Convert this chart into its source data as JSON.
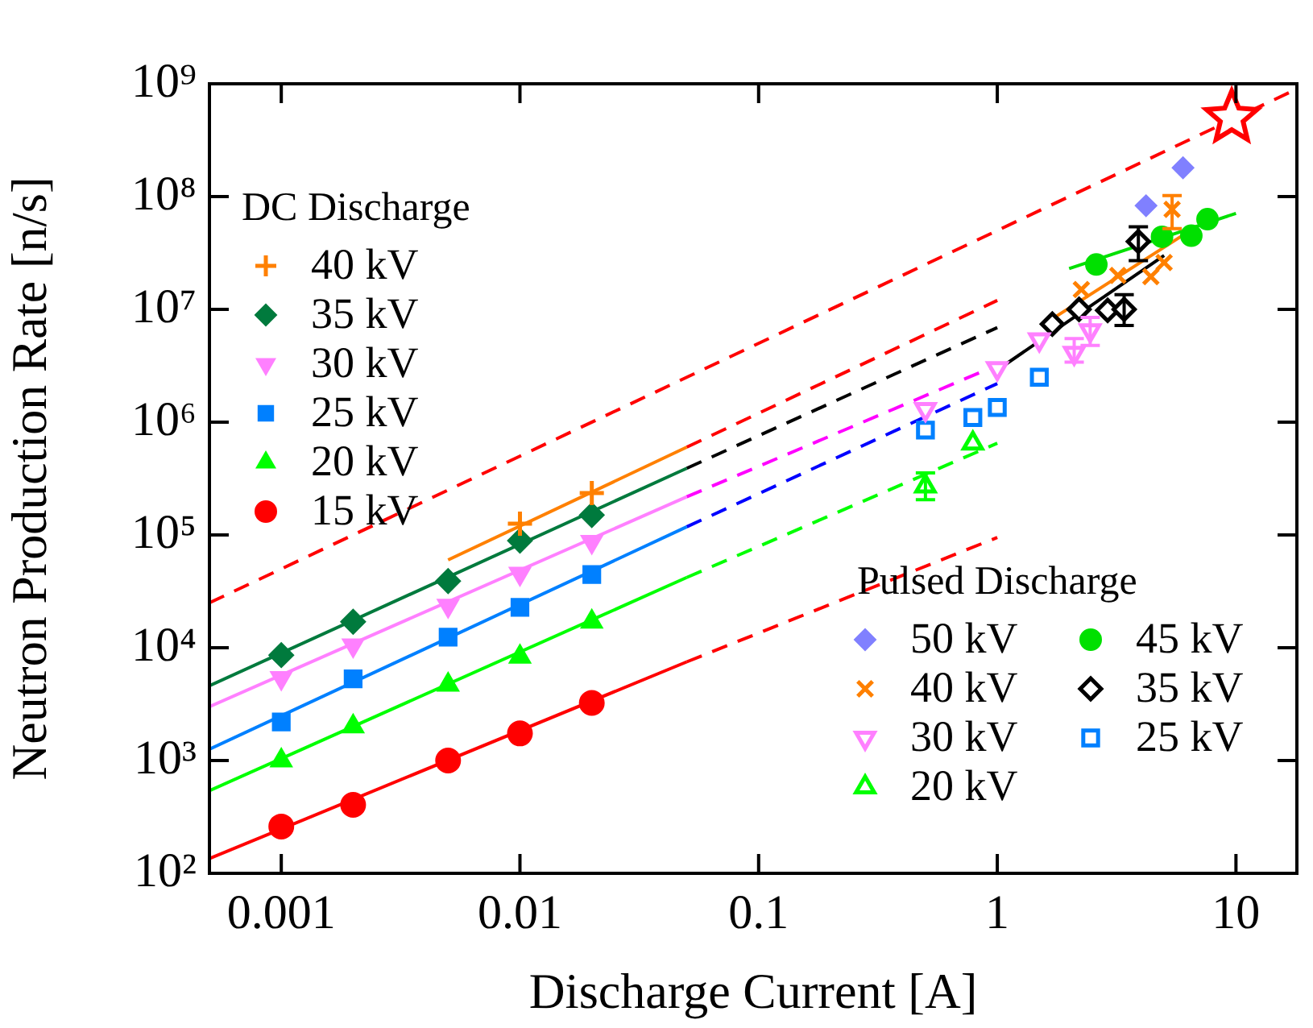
{
  "chart_data": {
    "type": "scatter",
    "xlabel": "Discharge Current [A]",
    "ylabel": "Neutron Production Rate [n/s]",
    "log": "xy",
    "grid": false,
    "legend": [
      "top left",
      "bottom right"
    ],
    "legend_title": [
      "DC Discharge",
      "Pulsed Discharge"
    ],
    "xlim": [
      0.0005,
      18
    ],
    "ylim": [
      100,
      1000000000
    ],
    "xticks": [
      0.001,
      0.01,
      0.1,
      1,
      10
    ],
    "yticks": [
      {
        "value": 100,
        "label": "10²"
      },
      {
        "value": 1000,
        "label": "10³"
      },
      {
        "value": 10000,
        "label": "10⁴"
      },
      {
        "value": 100000,
        "label": "10⁵"
      },
      {
        "value": 1000000,
        "label": "10⁶"
      },
      {
        "value": 10000000,
        "label": "10⁷"
      },
      {
        "value": 100000000,
        "label": "10⁸"
      },
      {
        "value": 1000000000,
        "label": "10⁹"
      }
    ],
    "series": [
      {
        "type": "line",
        "marker": "none",
        "line_style": "solid",
        "color": "#ff8000",
        "x": [
          0.005,
          0.05
        ],
        "values": [
          60000,
          600000
        ]
      },
      {
        "type": "line",
        "marker": "none",
        "line_style": "solid",
        "color": "#007a3d",
        "x": [
          0.0005,
          0.05
        ],
        "values": [
          4600,
          390000
        ]
      },
      {
        "type": "line",
        "marker": "none",
        "line_style": "solid",
        "color": "#ff80ff",
        "x": [
          0.0005,
          0.05
        ],
        "values": [
          3000,
          218000
        ]
      },
      {
        "type": "line",
        "marker": "none",
        "line_style": "solid",
        "color": "#0080ff",
        "x": [
          0.0005,
          0.05
        ],
        "values": [
          1260,
          118000
        ]
      },
      {
        "type": "line",
        "marker": "none",
        "line_style": "solid",
        "color": "#00ff00",
        "x": [
          0.0005,
          0.05
        ],
        "values": [
          540,
          42000
        ]
      },
      {
        "type": "line",
        "marker": "none",
        "line_style": "solid",
        "color": "#ff0000",
        "x": [
          0.0005,
          0.05
        ],
        "values": [
          135,
          7500
        ]
      },
      {
        "type": "line",
        "marker": "none",
        "line_style": "dashed",
        "color": "#ff0000",
        "x": [
          0.05,
          1
        ],
        "values": [
          600000,
          12000000
        ]
      },
      {
        "type": "line",
        "marker": "none",
        "line_style": "dashed",
        "color": "#000000",
        "x": [
          0.05,
          1
        ],
        "values": [
          390000,
          6900000
        ]
      },
      {
        "type": "line",
        "marker": "none",
        "line_style": "dashed",
        "color": "#ff00ff",
        "x": [
          0.05,
          1
        ],
        "values": [
          218000,
          3200000
        ]
      },
      {
        "type": "line",
        "marker": "none",
        "line_style": "dashed",
        "color": "#0000ff",
        "x": [
          0.05,
          1
        ],
        "values": [
          118000,
          2200000
        ]
      },
      {
        "type": "line",
        "marker": "none",
        "line_style": "dashed",
        "color": "#00ff00",
        "x": [
          0.05,
          1
        ],
        "values": [
          42000,
          650000
        ]
      },
      {
        "type": "line",
        "marker": "none",
        "line_style": "dashed",
        "color": "#ff0000",
        "x": [
          0.05,
          1
        ],
        "values": [
          7500,
          95000
        ]
      },
      {
        "type": "line",
        "marker": "none",
        "line_style": "dashed",
        "color": "#ff0000",
        "x": [
          0.0005,
          18
        ],
        "values": [
          25000,
          900000000
        ]
      },
      {
        "type": "line",
        "marker": "none",
        "line_style": "solid",
        "color": "#00e000",
        "x": [
          2.0,
          10
        ],
        "values": [
          23000000,
          71000000
        ]
      },
      {
        "type": "line",
        "marker": "none",
        "line_style": "solid",
        "color": "#ff8000",
        "x": [
          1.74,
          6.9
        ],
        "values": [
          8500000,
          55000000
        ]
      },
      {
        "type": "line",
        "marker": "none",
        "line_style": "solid",
        "color": "#000000",
        "x": [
          1.0,
          5.0
        ],
        "values": [
          2900000,
          30000000
        ]
      },
      {
        "name": "40 kV",
        "marker": "cross",
        "color": "#ff8000",
        "x": [
          0.01,
          0.02
        ],
        "values": [
          126000,
          235000
        ]
      },
      {
        "name": "35 kV",
        "marker": "diamond",
        "color": "#007a3d",
        "x": [
          0.001,
          0.002,
          0.005,
          0.01,
          0.02
        ],
        "values": [
          8600,
          17000,
          39000,
          89000,
          150000
        ]
      },
      {
        "name": "30 kV",
        "marker": "triangle-down",
        "color": "#ff80ff",
        "x": [
          0.001,
          0.002,
          0.005,
          0.01,
          0.02
        ],
        "values": [
          5400,
          10500,
          23600,
          45500,
          87000
        ]
      },
      {
        "name": "25 kV",
        "marker": "square",
        "color": "#0080ff",
        "x": [
          0.001,
          0.002,
          0.005,
          0.01,
          0.02
        ],
        "values": [
          2200,
          5300,
          12400,
          22800,
          44500
        ]
      },
      {
        "name": "20 kV",
        "marker": "triangle",
        "color": "#00ff00",
        "x": [
          0.001,
          0.002,
          0.005,
          0.01,
          0.02
        ],
        "values": [
          1000,
          2000,
          4700,
          8300,
          17000
        ]
      },
      {
        "name": "15 kV",
        "marker": "circle",
        "color": "#ff0000",
        "x": [
          0.001,
          0.002,
          0.005,
          0.01,
          0.02
        ],
        "values": [
          260,
          405,
          1000,
          1740,
          3240
        ]
      },
      {
        "type": "scatter",
        "marker": "star-open",
        "color": "#ff0000",
        "x": [
          9.6
        ],
        "values": [
          500000000
        ]
      },
      {
        "name": "50 kV",
        "marker": "diamond",
        "color": "#8080ff",
        "x": [
          4.2,
          6.0
        ],
        "values": [
          83000000,
          180000000
        ]
      },
      {
        "name": "40 kV",
        "marker": "x",
        "color": "#ff8000",
        "x": [
          2.25,
          3.2,
          4.4,
          5.0,
          5.4
        ],
        "values": [
          15000000,
          20000000,
          19500000,
          26000000,
          77000000
        ],
        "errors": [
          null,
          null,
          null,
          null,
          [
            52000000,
            102000000
          ]
        ]
      },
      {
        "name": "30 kV",
        "marker": "triangle-down-open",
        "color": "#ff80ff",
        "x": [
          0.5,
          1.0,
          1.5,
          2.1,
          2.45
        ],
        "values": [
          1300000,
          3000000,
          5400000,
          4100000,
          6500000
        ],
        "errors": [
          null,
          null,
          null,
          [
            3400000,
            5500000
          ],
          [
            4800000,
            8500000
          ]
        ]
      },
      {
        "name": "20 kV",
        "marker": "triangle-open",
        "color": "#00ff00",
        "x": [
          0.5,
          0.79
        ],
        "values": [
          270000,
          650000
        ],
        "errors": [
          [
            205000,
            355000
          ],
          null
        ]
      },
      {
        "name": "45 kV",
        "marker": "circle",
        "color": "#00e000",
        "x": [
          2.6,
          4.9,
          6.5,
          7.6
        ],
        "values": [
          25000000,
          44000000,
          45000000,
          63000000
        ]
      },
      {
        "name": "35 kV",
        "marker": "diamond-open",
        "color": "#000000",
        "x": [
          1.7,
          2.2,
          2.9,
          3.4,
          3.9
        ],
        "values": [
          7400000,
          10000000,
          9800000,
          10000000,
          40000000
        ],
        "errors": [
          null,
          null,
          null,
          [
            7200000,
            13500000
          ],
          [
            27000000,
            54000000
          ]
        ]
      },
      {
        "name": "25 kV",
        "marker": "square-open",
        "color": "#0080ff",
        "x": [
          0.5,
          0.79,
          1.0,
          1.5
        ],
        "values": [
          850000,
          1100000,
          1350000,
          2500000
        ]
      }
    ]
  }
}
